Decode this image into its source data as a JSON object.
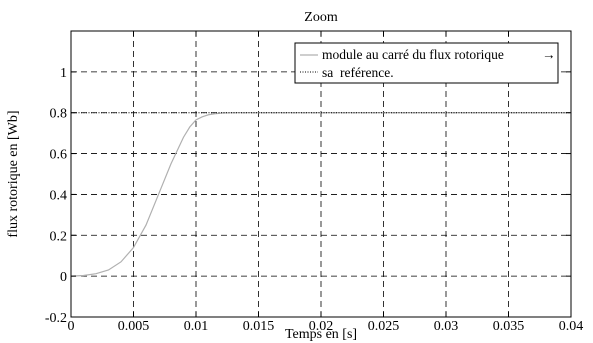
{
  "chart_data": {
    "type": "line",
    "title": "Zoom",
    "xlabel": "Temps en [s]",
    "ylabel": "flux rotorique en [Wb]",
    "xlim": [
      0,
      0.04
    ],
    "ylim": [
      -0.2,
      1.2
    ],
    "xticks": [
      0,
      0.005,
      0.01,
      0.015,
      0.02,
      0.025,
      0.03,
      0.035,
      0.04
    ],
    "xtick_labels": [
      "0",
      "0.005",
      "0.01",
      "0.015",
      "0.02",
      "0.025",
      "0.03",
      "0.035",
      "0.04"
    ],
    "yticks": [
      -0.2,
      0,
      0.2,
      0.4,
      0.6,
      0.8,
      1
    ],
    "ytick_labels": [
      "-0.2",
      "0",
      "0.2",
      "0.4",
      "0.6",
      "0.8",
      "1"
    ],
    "grid": true,
    "legend_position": "top-right",
    "series": [
      {
        "name": "module au carré du flux rotorique",
        "color": "#b0b0b0",
        "style": "solid",
        "x": [
          0,
          0.001,
          0.002,
          0.003,
          0.004,
          0.005,
          0.006,
          0.007,
          0.008,
          0.009,
          0.0095,
          0.01,
          0.0105,
          0.011,
          0.0115,
          0.012,
          0.013,
          0.014,
          0.015,
          0.02,
          0.025,
          0.03,
          0.035,
          0.04
        ],
        "y": [
          0,
          0.003,
          0.012,
          0.03,
          0.07,
          0.14,
          0.25,
          0.4,
          0.55,
          0.68,
          0.73,
          0.765,
          0.78,
          0.79,
          0.795,
          0.798,
          0.8,
          0.8,
          0.8,
          0.8,
          0.8,
          0.8,
          0.8,
          0.8
        ]
      },
      {
        "name": "sa  reférence.",
        "color": "#000000",
        "style": "dotted",
        "x": [
          0,
          0.04
        ],
        "y": [
          0.8,
          0.8
        ]
      }
    ]
  }
}
